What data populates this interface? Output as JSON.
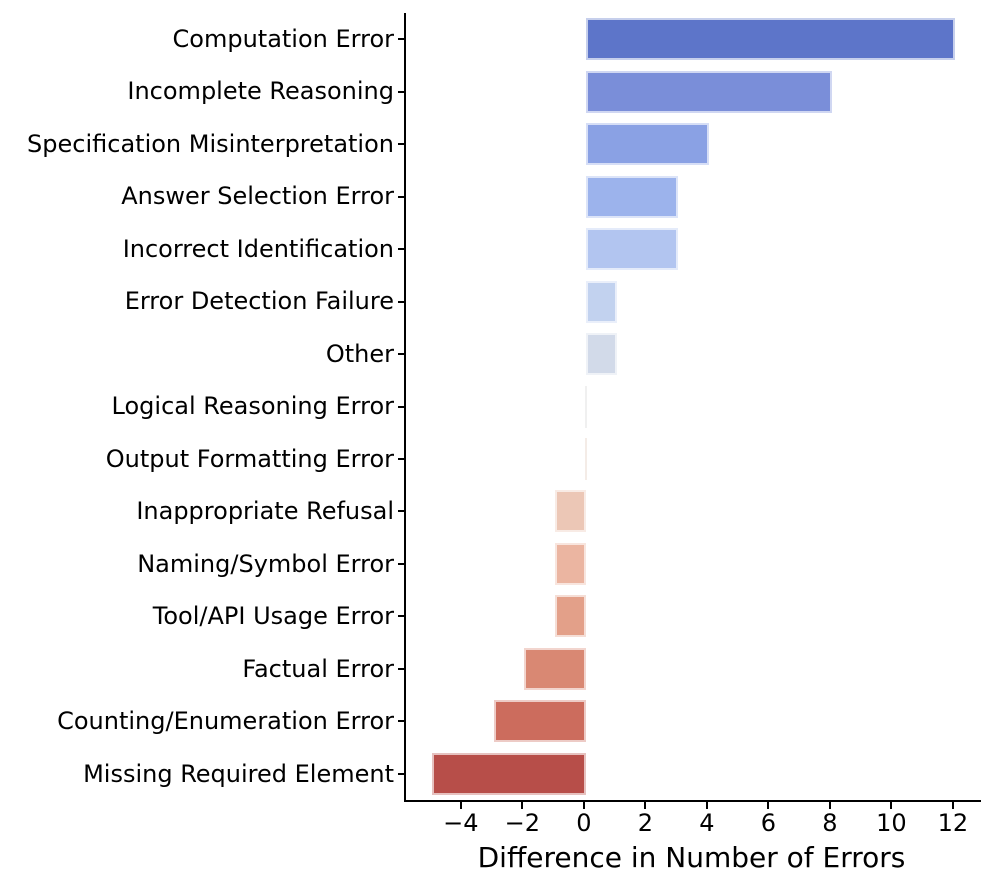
{
  "chart_data": {
    "type": "bar",
    "orientation": "horizontal",
    "title": "",
    "xlabel": "Difference in Number of Errors",
    "ylabel": "",
    "categories": [
      "Computation Error",
      "Incomplete Reasoning",
      "Specification Misinterpretation",
      "Answer Selection Error",
      "Incorrect Identification",
      "Error Detection Failure",
      "Other",
      "Logical Reasoning Error",
      "Output Formatting Error",
      "Inappropriate Refusal",
      "Naming/Symbol Error",
      "Tool/API Usage Error",
      "Factual Error",
      "Counting/Enumeration Error",
      "Missing Required Element"
    ],
    "values": [
      12,
      8,
      4,
      3,
      3,
      1,
      1,
      0,
      0,
      -1,
      -1,
      -1,
      -2,
      -3,
      -5
    ],
    "bar_colors": [
      "#5d75c9",
      "#7a8ed9",
      "#8aa1e4",
      "#9cb3ec",
      "#b2c5f0",
      "#c2d2ef",
      "#d2dae9",
      "#dddddd",
      "#e7d4ca",
      "#ecc7b6",
      "#ebb5a1",
      "#e3a089",
      "#d98873",
      "#cc6c5d",
      "#b74e49"
    ],
    "xticks": [
      -4,
      -2,
      0,
      2,
      4,
      6,
      8,
      10,
      12
    ],
    "xtick_labels": [
      "−4",
      "−2",
      "0",
      "2",
      "4",
      "6",
      "8",
      "10",
      "12"
    ],
    "xlim": [
      -5.85,
      12.85
    ],
    "grid": false,
    "legend": false
  },
  "colors": {
    "spine": "#000000",
    "background": "#ffffff",
    "text": "#000000"
  }
}
